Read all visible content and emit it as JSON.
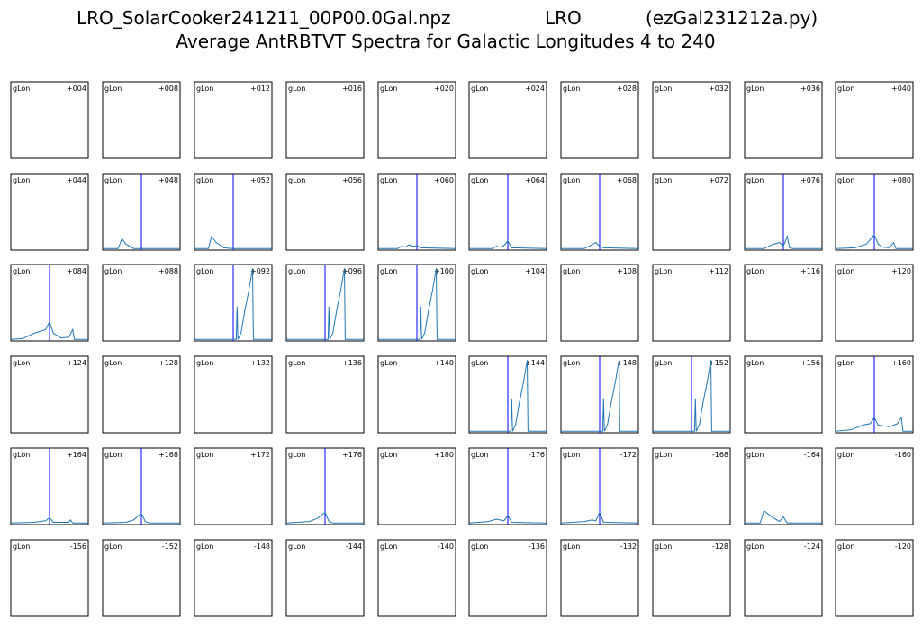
{
  "chart_data": {
    "type": "panel-grid",
    "title_parts": [
      "LRO_SolarCooker241211_00P00.0Gal.npz",
      "LRO",
      "(ezGal231212a.py)"
    ],
    "subtitle": "Average AntRBTVT Spectra for Galactic Longitudes 4 to 240",
    "line_color": "#1f77b4",
    "marker_color": "#0000ff",
    "panels": [
      {
        "name": "gLon",
        "label": "+004"
      },
      {
        "name": "gLon",
        "label": "+008"
      },
      {
        "name": "gLon",
        "label": "+012"
      },
      {
        "name": "gLon",
        "label": "+016"
      },
      {
        "name": "gLon",
        "label": "+020"
      },
      {
        "name": "gLon",
        "label": "+024"
      },
      {
        "name": "gLon",
        "label": "+028"
      },
      {
        "name": "gLon",
        "label": "+032"
      },
      {
        "name": "gLon",
        "label": "+036"
      },
      {
        "name": "gLon",
        "label": "+040"
      },
      {
        "name": "gLon",
        "label": "+044"
      },
      {
        "name": "gLon",
        "label": "+048",
        "marker": 0.5,
        "x": [
          0,
          0.2,
          0.25,
          0.3,
          0.4,
          0.5,
          1
        ],
        "values": [
          0.02,
          0.02,
          0.15,
          0.08,
          0.02,
          0.02,
          0.02
        ]
      },
      {
        "name": "gLon",
        "label": "+052",
        "marker": 0.5,
        "x": [
          0,
          0.18,
          0.22,
          0.28,
          0.38,
          0.5,
          1
        ],
        "values": [
          0.02,
          0.02,
          0.18,
          0.1,
          0.03,
          0.02,
          0.02
        ]
      },
      {
        "name": "gLon",
        "label": "+056"
      },
      {
        "name": "gLon",
        "label": "+060",
        "marker": 0.5,
        "x": [
          0,
          0.25,
          0.3,
          0.35,
          0.4,
          0.45,
          0.5,
          0.55,
          1
        ],
        "values": [
          0.02,
          0.02,
          0.05,
          0.04,
          0.07,
          0.05,
          0.06,
          0.03,
          0.02
        ]
      },
      {
        "name": "gLon",
        "label": "+064",
        "marker": 0.5,
        "x": [
          0,
          0.3,
          0.35,
          0.4,
          0.45,
          0.5,
          0.55,
          1
        ],
        "values": [
          0.02,
          0.02,
          0.05,
          0.04,
          0.06,
          0.12,
          0.03,
          0.02
        ]
      },
      {
        "name": "gLon",
        "label": "+068",
        "marker": 0.5,
        "x": [
          0,
          0.3,
          0.38,
          0.45,
          0.5,
          0.55,
          1
        ],
        "values": [
          0.02,
          0.02,
          0.06,
          0.1,
          0.05,
          0.03,
          0.02
        ]
      },
      {
        "name": "gLon",
        "label": "+072"
      },
      {
        "name": "gLon",
        "label": "+076",
        "marker": 0.5,
        "x": [
          0,
          0.25,
          0.35,
          0.45,
          0.5,
          0.55,
          0.58,
          0.62,
          1
        ],
        "values": [
          0.02,
          0.02,
          0.07,
          0.1,
          0.05,
          0.18,
          0.03,
          0.02,
          0.02
        ]
      },
      {
        "name": "gLon",
        "label": "+080",
        "marker": 0.5,
        "x": [
          0,
          0.25,
          0.4,
          0.5,
          0.55,
          0.6,
          0.7,
          0.75,
          0.78,
          1
        ],
        "values": [
          0.02,
          0.03,
          0.08,
          0.2,
          0.08,
          0.04,
          0.03,
          0.1,
          0.02,
          0.02
        ]
      },
      {
        "name": "gLon",
        "label": "+084",
        "marker": 0.5,
        "x": [
          0,
          0.15,
          0.3,
          0.45,
          0.5,
          0.55,
          0.65,
          0.75,
          0.8,
          0.82,
          1
        ],
        "values": [
          0.02,
          0.03,
          0.1,
          0.15,
          0.25,
          0.1,
          0.04,
          0.05,
          0.15,
          0.02,
          0.02
        ]
      },
      {
        "name": "gLon",
        "label": "+088"
      },
      {
        "name": "gLon",
        "label": "+092",
        "marker": 0.5,
        "x": [
          0,
          0.54,
          0.55,
          0.56,
          0.6,
          0.65,
          0.7,
          0.75,
          0.76,
          1
        ],
        "values": [
          0.02,
          0.02,
          0.45,
          0.02,
          0.1,
          0.4,
          0.65,
          0.95,
          0.02,
          0.02
        ]
      },
      {
        "name": "gLon",
        "label": "+096",
        "marker": 0.5,
        "x": [
          0,
          0.54,
          0.55,
          0.56,
          0.6,
          0.65,
          0.7,
          0.75,
          0.76,
          1
        ],
        "values": [
          0.02,
          0.02,
          0.45,
          0.02,
          0.1,
          0.4,
          0.65,
          0.95,
          0.02,
          0.02
        ]
      },
      {
        "name": "gLon",
        "label": "+100",
        "marker": 0.5,
        "x": [
          0,
          0.54,
          0.55,
          0.56,
          0.6,
          0.65,
          0.7,
          0.75,
          0.76,
          1
        ],
        "values": [
          0.02,
          0.02,
          0.45,
          0.02,
          0.1,
          0.4,
          0.65,
          0.95,
          0.02,
          0.02
        ]
      },
      {
        "name": "gLon",
        "label": "+104"
      },
      {
        "name": "gLon",
        "label": "+108"
      },
      {
        "name": "gLon",
        "label": "+112"
      },
      {
        "name": "gLon",
        "label": "+116"
      },
      {
        "name": "gLon",
        "label": "+120"
      },
      {
        "name": "gLon",
        "label": "+124"
      },
      {
        "name": "gLon",
        "label": "+128"
      },
      {
        "name": "gLon",
        "label": "+132"
      },
      {
        "name": "gLon",
        "label": "+136"
      },
      {
        "name": "gLon",
        "label": "+140"
      },
      {
        "name": "gLon",
        "label": "+144",
        "marker": 0.5,
        "x": [
          0,
          0.54,
          0.55,
          0.56,
          0.6,
          0.65,
          0.7,
          0.75,
          0.76,
          1
        ],
        "values": [
          0.02,
          0.02,
          0.45,
          0.02,
          0.1,
          0.4,
          0.65,
          0.95,
          0.02,
          0.02
        ]
      },
      {
        "name": "gLon",
        "label": "+148",
        "marker": 0.5,
        "x": [
          0,
          0.54,
          0.55,
          0.56,
          0.6,
          0.65,
          0.7,
          0.75,
          0.76,
          1
        ],
        "values": [
          0.02,
          0.02,
          0.45,
          0.02,
          0.1,
          0.4,
          0.65,
          0.95,
          0.02,
          0.02
        ]
      },
      {
        "name": "gLon",
        "label": "+152",
        "marker": 0.5,
        "x": [
          0,
          0.54,
          0.55,
          0.56,
          0.6,
          0.65,
          0.7,
          0.75,
          0.76,
          1
        ],
        "values": [
          0.02,
          0.02,
          0.45,
          0.02,
          0.1,
          0.4,
          0.65,
          0.95,
          0.02,
          0.02
        ]
      },
      {
        "name": "gLon",
        "label": "+156"
      },
      {
        "name": "gLon",
        "label": "+160",
        "marker": 0.5,
        "x": [
          0,
          0.2,
          0.35,
          0.45,
          0.5,
          0.55,
          0.7,
          0.8,
          0.85,
          0.87,
          1
        ],
        "values": [
          0.02,
          0.04,
          0.1,
          0.12,
          0.2,
          0.1,
          0.08,
          0.12,
          0.2,
          0.02,
          0.02
        ]
      },
      {
        "name": "gLon",
        "label": "+164",
        "marker": 0.5,
        "x": [
          0,
          0.3,
          0.45,
          0.5,
          0.55,
          0.75,
          0.77,
          0.8,
          1
        ],
        "values": [
          0.02,
          0.03,
          0.05,
          0.09,
          0.03,
          0.03,
          0.06,
          0.02,
          0.02
        ]
      },
      {
        "name": "gLon",
        "label": "+168",
        "marker": 0.5,
        "x": [
          0,
          0.3,
          0.4,
          0.5,
          0.55,
          0.6,
          1
        ],
        "values": [
          0.02,
          0.03,
          0.06,
          0.15,
          0.04,
          0.02,
          0.02
        ]
      },
      {
        "name": "gLon",
        "label": "+172"
      },
      {
        "name": "gLon",
        "label": "+176",
        "marker": 0.5,
        "x": [
          0,
          0.3,
          0.4,
          0.5,
          0.55,
          0.6,
          1
        ],
        "values": [
          0.02,
          0.04,
          0.08,
          0.16,
          0.04,
          0.02,
          0.02
        ]
      },
      {
        "name": "gLon",
        "label": "+180"
      },
      {
        "name": "gLon",
        "label": "-176",
        "marker": 0.5,
        "x": [
          0,
          0.25,
          0.35,
          0.45,
          0.5,
          0.55,
          1
        ],
        "values": [
          0.02,
          0.04,
          0.07,
          0.05,
          0.12,
          0.03,
          0.02
        ]
      },
      {
        "name": "gLon",
        "label": "-172",
        "marker": 0.5,
        "x": [
          0,
          0.3,
          0.4,
          0.45,
          0.5,
          0.55,
          1
        ],
        "values": [
          0.02,
          0.04,
          0.06,
          0.05,
          0.16,
          0.03,
          0.02
        ]
      },
      {
        "name": "gLon",
        "label": "-168"
      },
      {
        "name": "gLon",
        "label": "-164",
        "x": [
          0,
          0.2,
          0.25,
          0.35,
          0.45,
          0.5,
          0.55,
          1
        ],
        "values": [
          0.02,
          0.02,
          0.18,
          0.1,
          0.04,
          0.1,
          0.02,
          0.02
        ]
      },
      {
        "name": "gLon",
        "label": "-160"
      },
      {
        "name": "gLon",
        "label": "-156"
      },
      {
        "name": "gLon",
        "label": "-152"
      },
      {
        "name": "gLon",
        "label": "-148"
      },
      {
        "name": "gLon",
        "label": "-144"
      },
      {
        "name": "gLon",
        "label": "-140"
      },
      {
        "name": "gLon",
        "label": "-136"
      },
      {
        "name": "gLon",
        "label": "-132"
      },
      {
        "name": "gLon",
        "label": "-128"
      },
      {
        "name": "gLon",
        "label": "-124"
      },
      {
        "name": "gLon",
        "label": "-120"
      }
    ]
  }
}
